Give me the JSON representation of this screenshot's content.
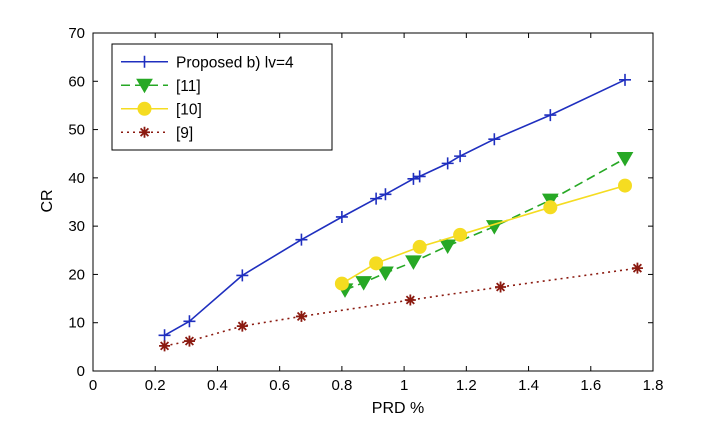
{
  "chart_data": {
    "type": "line",
    "title": "",
    "xlabel": "PRD %",
    "ylabel": "CR",
    "xlim": [
      0,
      1.8
    ],
    "ylim": [
      0,
      70
    ],
    "xticks": [
      0,
      0.2,
      0.4,
      0.6,
      0.8,
      1,
      1.2,
      1.4,
      1.6,
      1.8
    ],
    "xtick_labels": [
      "0",
      "0.2",
      "0.4",
      "0.6",
      "0.8",
      "1",
      "1.2",
      "1.4",
      "1.6",
      "1.8"
    ],
    "yticks": [
      0,
      10,
      20,
      30,
      40,
      50,
      60,
      70
    ],
    "ytick_labels": [
      "0",
      "10",
      "20",
      "30",
      "40",
      "50",
      "60",
      "70"
    ],
    "grid": false,
    "legend_position": "top-left",
    "series": [
      {
        "name": "Proposed b) lv=4",
        "color": "#1f2fbf",
        "line": "solid",
        "marker": "plus",
        "x": [
          0.23,
          0.31,
          0.48,
          0.67,
          0.8,
          0.91,
          0.94,
          1.03,
          1.05,
          1.14,
          1.18,
          1.29,
          1.47,
          1.71
        ],
        "y": [
          7.4,
          10.3,
          19.8,
          27.2,
          31.9,
          35.7,
          36.6,
          39.8,
          40.3,
          43.0,
          44.5,
          48.0,
          53.0,
          60.3
        ]
      },
      {
        "name": "[11]",
        "color": "#27a825",
        "line": "dashed",
        "marker": "triangle-down",
        "x": [
          0.81,
          0.87,
          0.94,
          1.03,
          1.14,
          1.29,
          1.47,
          1.71
        ],
        "y": [
          16.8,
          18.3,
          20.3,
          22.6,
          25.9,
          29.9,
          35.4,
          44.0
        ]
      },
      {
        "name": "[10]",
        "color": "#f5dc21",
        "line": "solid",
        "marker": "circle",
        "x": [
          0.8,
          0.91,
          1.05,
          1.18,
          1.47,
          1.71
        ],
        "y": [
          18.1,
          22.3,
          25.7,
          28.2,
          33.9,
          38.4
        ]
      },
      {
        "name": "[9]",
        "color": "#8b1a10",
        "line": "dotted",
        "marker": "asterisk",
        "x": [
          0.23,
          0.31,
          0.48,
          0.67,
          1.02,
          1.31,
          1.75
        ],
        "y": [
          5.2,
          6.2,
          9.3,
          11.3,
          14.7,
          17.4,
          21.3
        ]
      }
    ]
  }
}
